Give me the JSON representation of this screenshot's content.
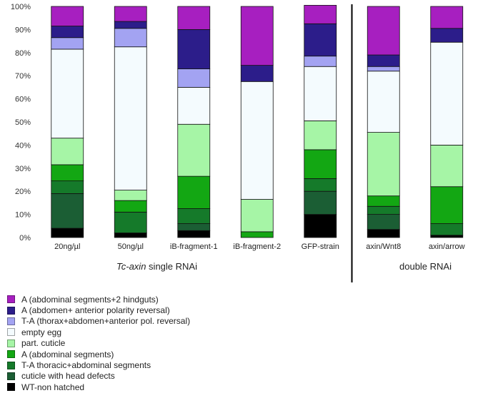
{
  "chart_data": {
    "type": "bar",
    "stacked": true,
    "y_axis": {
      "min": 0,
      "max": 100,
      "step": 10,
      "tick_suffix": "%"
    },
    "categories": [
      "20ng/µl",
      "50ng/µl",
      "iB-fragment-1",
      "iB-fragment-2",
      "GFP-strain",
      "axin/Wnt8",
      "axin/arrow"
    ],
    "groups": [
      {
        "label_italic": "Tc-axin",
        "label_rest": " single RNAi",
        "categories": [
          0,
          1,
          2,
          3,
          4
        ]
      },
      {
        "label_italic": "",
        "label_rest": "double RNAi",
        "categories": [
          5,
          6
        ]
      }
    ],
    "series": [
      {
        "name": "WT-non hatched",
        "color": "#000000",
        "values": [
          4,
          2,
          3,
          0,
          10,
          3.5,
          1
        ]
      },
      {
        "name": "cuticle with head defects",
        "color": "#1b5e34",
        "values": [
          15,
          0,
          3,
          0,
          10,
          6.5,
          0
        ]
      },
      {
        "name": "T-A  thoracic+abdominal segments",
        "color": "#157a2a",
        "values": [
          5.5,
          9,
          6.5,
          0,
          5.5,
          3.5,
          5
        ]
      },
      {
        "name": "A (abdominal segments)",
        "color": "#13a713",
        "values": [
          7,
          5,
          14,
          2.5,
          12.5,
          4.5,
          16
        ]
      },
      {
        "name": "part. cuticle",
        "color": "#a6f5a6",
        "values": [
          11.5,
          4.5,
          22.5,
          14,
          12.5,
          27.5,
          18
        ]
      },
      {
        "name": "empty egg",
        "color": "#f4fbfe",
        "values": [
          38.5,
          62,
          16,
          51,
          23.5,
          26.5,
          44.5
        ]
      },
      {
        "name": "T-A  (thorax+abdomen+anterior pol. reversal)",
        "color": "#a3a3f2",
        "values": [
          5,
          8,
          8,
          0,
          4.5,
          2,
          0
        ]
      },
      {
        "name": "A (abdomen+ anterior polarity reversal)",
        "color": "#2c1d8a",
        "values": [
          5,
          3,
          17,
          7,
          14,
          5,
          6
        ]
      },
      {
        "name": "A (abdominal segments+2 hindguts)",
        "color": "#a71fc0",
        "values": [
          8.5,
          6.5,
          10,
          25.5,
          8,
          21,
          9.5
        ]
      }
    ]
  }
}
